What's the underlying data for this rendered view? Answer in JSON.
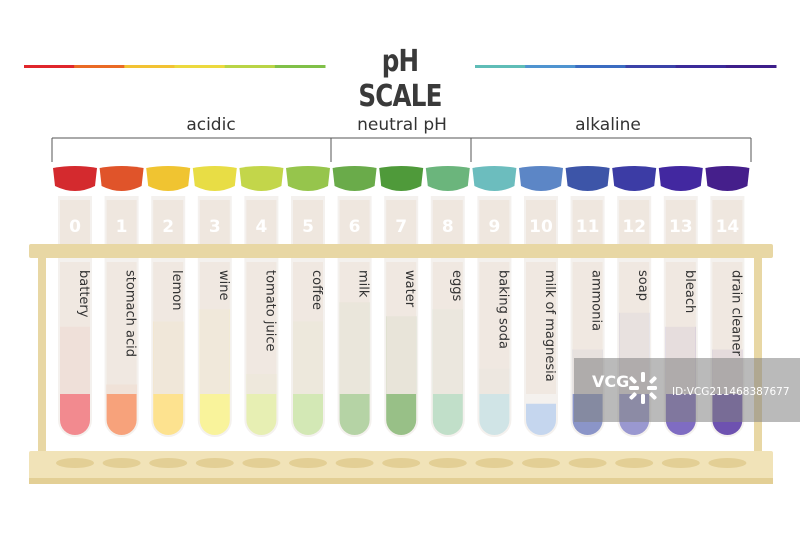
{
  "title": "pH SCALE",
  "groups": {
    "acidic": "acidic",
    "neutral": "neutral pH",
    "alkaline": "alkaline"
  },
  "tubes": [
    {
      "ph": "0",
      "label": "battery",
      "cap": "#d42a2e",
      "liquid": "#f28a8f",
      "level": 0.63
    },
    {
      "ph": "1",
      "label": "stomach acid",
      "cap": "#e0542a",
      "liquid": "#f7a27b",
      "level": 0.3
    },
    {
      "ph": "2",
      "label": "lemon",
      "cap": "#f0c431",
      "liquid": "#fde28f",
      "level": 0.66
    },
    {
      "ph": "3",
      "label": "wine",
      "cap": "#e8dd45",
      "liquid": "#f9f39b",
      "level": 0.73
    },
    {
      "ph": "4",
      "label": "tomato juice",
      "cap": "#c3d64a",
      "liquid": "#e7efb3",
      "level": 0.36
    },
    {
      "ph": "5",
      "label": "coffee",
      "cap": "#96c54c",
      "liquid": "#d3e8b5",
      "level": 0.66
    },
    {
      "ph": "6",
      "label": "milk",
      "cap": "#6aab4a",
      "liquid": "#b5d3a5",
      "level": 0.77
    },
    {
      "ph": "7",
      "label": "water",
      "cap": "#4f9a3a",
      "liquid": "#98c087",
      "level": 0.69
    },
    {
      "ph": "8",
      "label": "eggs",
      "cap": "#6bb57c",
      "liquid": "#c1dfc9",
      "level": 0.73
    },
    {
      "ph": "9",
      "label": "baking soda",
      "cap": "#6cbdbe",
      "liquid": "#d0e4e6",
      "level": 0.39
    },
    {
      "ph": "10",
      "label": "milk of magnesia",
      "cap": "#5c86c6",
      "liquid": "#c5d6ee",
      "level": 0.19
    },
    {
      "ph": "11",
      "label": "ammonia",
      "cap": "#3d55a8",
      "liquid": "#8b95c8",
      "level": 0.5
    },
    {
      "ph": "12",
      "label": "soap",
      "cap": "#3c3ca5",
      "liquid": "#9a98d0",
      "level": 0.71
    },
    {
      "ph": "13",
      "label": "bleach",
      "cap": "#4228a0",
      "liquid": "#7f6cc2",
      "level": 0.63
    },
    {
      "ph": "14",
      "label": "drain cleaner",
      "cap": "#451f8b",
      "liquid": "#6e52b0",
      "level": 0.5
    }
  ],
  "colors": {
    "rainbow_left": [
      "#e0262b",
      "#ea6a24",
      "#f2c233",
      "#ecd93e",
      "#b9d446",
      "#80c048"
    ],
    "rainbow_right": [
      "#5fbdb7",
      "#4f94d0",
      "#3b6cc1",
      "#3b42a8",
      "#3b2a99",
      "#3d1e8a"
    ],
    "rack": "#e8d7a4",
    "rack_shadow": "#d9c48c",
    "label_bg": "#efe7df",
    "tube_body": "#f4f1ee"
  },
  "watermark": {
    "logo": "VCG",
    "id": "ID:VCG211468387677"
  }
}
